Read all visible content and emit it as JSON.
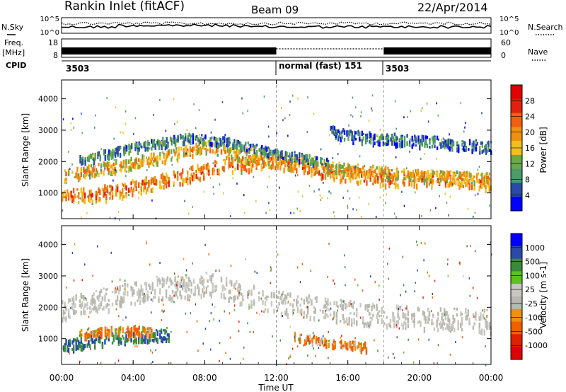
{
  "header": {
    "title": "Rankin Inlet (fitACF)",
    "beam": "Beam 09",
    "date": "22/Apr/2014"
  },
  "noise_panel": {
    "left_label": "N.Sky",
    "right_label": "N.Search",
    "ticks_left": [
      "10^5",
      "10^0"
    ],
    "ticks_right": [
      "10^5",
      "10^0"
    ]
  },
  "freq_panel": {
    "left_label": "Freq.",
    "left_unit": "[MHz]",
    "right_label": "Nave",
    "ticks_left": [
      "18",
      "8"
    ],
    "ticks_right": [
      "60",
      "0"
    ]
  },
  "cpid_panel": {
    "label": "CPID",
    "segments": [
      {
        "text": "3503",
        "start_hour": 0
      },
      {
        "text": "normal (fast) 151",
        "start_hour": 12
      },
      {
        "text": "3503",
        "start_hour": 18
      }
    ]
  },
  "colors": {
    "power_scale": [
      "#0000ff",
      "#2a4aa8",
      "#4a9a6a",
      "#6aa84a",
      "#f0c020",
      "#f09010",
      "#f06010",
      "#e02010",
      "#e00000"
    ],
    "velocity_scale": [
      "#e00000",
      "#e02000",
      "#f06000",
      "#f09010",
      "#b8b8b0",
      "#c8c8c0",
      "#60c020",
      "#3a8a3a",
      "#2a4aa8",
      "#0000ff"
    ]
  },
  "time_axis": {
    "xlabel": "Time UT",
    "ticks": [
      "00:00",
      "04:00",
      "08:00",
      "12:00",
      "16:00",
      "20:00",
      "00:00"
    ]
  },
  "chart_data": [
    {
      "type": "heatmap",
      "quantity": "Power",
      "xlabel": "Time UT",
      "ylabel": "Slant Range [km]",
      "colorbar_label": "Power [dB]",
      "colorbar_ticks": [
        "28",
        "24",
        "20",
        "16",
        "12",
        "8",
        "4"
      ],
      "xlim": [
        0,
        24
      ],
      "ylim": [
        180,
        4600
      ],
      "yticks": [
        1000,
        2000,
        3000,
        4000
      ],
      "bands": [
        {
          "t": [
            0,
            3,
            6,
            9,
            12,
            15,
            18,
            21,
            24
          ],
          "range": [
            900,
            1100,
            1500,
            1900,
            2100,
            1700,
            1500,
            1500,
            1400
          ],
          "width": 450,
          "level": 24
        },
        {
          "t": [
            0,
            4,
            8,
            12,
            16,
            20,
            24
          ],
          "range": [
            1600,
            2000,
            2500,
            2000,
            1800,
            1600,
            1500
          ],
          "width": 350,
          "level": 20
        },
        {
          "t": [
            1,
            4,
            7,
            9,
            12,
            15
          ],
          "range": [
            2100,
            2500,
            2800,
            2700,
            2300,
            2000
          ],
          "width": 250,
          "level": 10
        },
        {
          "t": [
            15,
            17,
            20,
            24
          ],
          "range": [
            3000,
            2800,
            2700,
            2500
          ],
          "width": 350,
          "level": 8
        }
      ]
    },
    {
      "type": "heatmap",
      "quantity": "Velocity",
      "xlabel": "Time UT",
      "ylabel": "Slant Range [km]",
      "colorbar_label": "Velocity [m s-1]",
      "colorbar_ticks": [
        "1000",
        "500",
        "100",
        "25",
        "-25",
        "-100",
        "-500",
        "-1000"
      ],
      "xlim": [
        0,
        24
      ],
      "ylim": [
        180,
        4600
      ],
      "yticks": [
        1000,
        2000,
        3000,
        4000
      ],
      "bands": [
        {
          "t": [
            0,
            4,
            8,
            12,
            16,
            20,
            24
          ],
          "range": [
            2000,
            2500,
            2800,
            2200,
            1900,
            1700,
            1600
          ],
          "width": 700,
          "level": 0
        },
        {
          "t": [
            0,
            2,
            4,
            6
          ],
          "range": [
            800,
            1000,
            1100,
            1200
          ],
          "width": 350,
          "level": 500
        },
        {
          "t": [
            1,
            3,
            5
          ],
          "range": [
            1200,
            1300,
            1300
          ],
          "width": 250,
          "level": -100
        },
        {
          "t": [
            13,
            15,
            17
          ],
          "range": [
            1100,
            900,
            800
          ],
          "width": 250,
          "level": -100
        }
      ]
    }
  ]
}
